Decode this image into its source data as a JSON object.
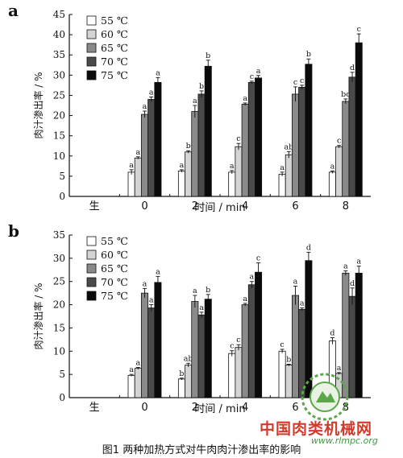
{
  "caption": "图1 两种加热方式对牛肉肉汁渗出率的影响",
  "watermark": {
    "text": "中国肉类机械网",
    "url": "www.rlmpc.org"
  },
  "chart_data": [
    {
      "panel": "a",
      "type": "bar",
      "xlabel": "时间 / min",
      "ylabel": "肉汁渗出率 / %",
      "ylim": [
        0,
        45
      ],
      "yticks": [
        0,
        5,
        10,
        15,
        20,
        25,
        30,
        35,
        40,
        45
      ],
      "categories": [
        "生",
        "0",
        "2",
        "4",
        "6",
        "8"
      ],
      "legend_position": "top-left",
      "series": [
        {
          "name": "55 ℃",
          "color": "#ffffff",
          "values": [
            0,
            6.0,
            6.3,
            6.0,
            5.5,
            6.0
          ],
          "errors": [
            0,
            0.6,
            0.3,
            0.4,
            0.5,
            0.3
          ],
          "labels": [
            "",
            "a",
            "a",
            "a",
            "a",
            "a"
          ]
        },
        {
          "name": "60 ℃",
          "color": "#d4d4d4",
          "values": [
            0,
            9.5,
            11.0,
            12.3,
            10.3,
            12.3
          ],
          "errors": [
            0,
            0.3,
            0.3,
            0.8,
            0.8,
            0.3
          ],
          "labels": [
            "",
            "a",
            "b",
            "c",
            "ab",
            "c"
          ]
        },
        {
          "name": "65 ℃",
          "color": "#8a8a8a",
          "values": [
            0,
            20.3,
            21.0,
            22.8,
            25.3,
            23.5
          ],
          "errors": [
            0,
            0.8,
            1.5,
            0.3,
            1.8,
            0.6
          ],
          "labels": [
            "",
            "a",
            "a",
            "a",
            "c",
            "bc"
          ]
        },
        {
          "name": "70 ℃",
          "color": "#4a4a4a",
          "values": [
            0,
            24.0,
            25.3,
            28.2,
            27.0,
            29.5
          ],
          "errors": [
            0,
            0.6,
            0.8,
            0.3,
            0.5,
            1.2
          ],
          "labels": [
            "",
            "a",
            "b",
            "c",
            "c",
            "d"
          ]
        },
        {
          "name": "75 ℃",
          "color": "#0a0a0a",
          "values": [
            0,
            28.2,
            32.2,
            29.3,
            32.7,
            38.0
          ],
          "errors": [
            0,
            1.2,
            1.5,
            0.6,
            1.3,
            2.2
          ],
          "labels": [
            "",
            "a",
            "b",
            "a",
            "b",
            "c"
          ]
        }
      ]
    },
    {
      "panel": "b",
      "type": "bar",
      "xlabel": "时间 / min",
      "ylabel": "肉汁渗出率 / %",
      "ylim": [
        0,
        35
      ],
      "yticks": [
        0,
        5,
        10,
        15,
        20,
        25,
        30,
        35
      ],
      "categories": [
        "生",
        "0",
        "2",
        "4",
        "6",
        "8"
      ],
      "legend_position": "top-left",
      "series": [
        {
          "name": "55 ℃",
          "color": "#ffffff",
          "values": [
            0,
            4.8,
            4.0,
            9.5,
            10.0,
            12.2
          ],
          "errors": [
            0,
            0.2,
            0.2,
            0.6,
            0.4,
            0.7
          ],
          "labels": [
            "",
            "a",
            "b",
            "c",
            "c",
            "d"
          ]
        },
        {
          "name": "60 ℃",
          "color": "#d4d4d4",
          "values": [
            0,
            6.3,
            7.0,
            10.8,
            7.0,
            5.2
          ],
          "errors": [
            0,
            0.2,
            0.4,
            0.6,
            0.2,
            0.2
          ],
          "labels": [
            "",
            "a",
            "ab",
            "c",
            "b",
            "a"
          ]
        },
        {
          "name": "65 ℃",
          "color": "#8a8a8a",
          "values": [
            0,
            22.5,
            20.7,
            20.0,
            22.0,
            26.8
          ],
          "errors": [
            0,
            1.0,
            1.3,
            0.3,
            2.0,
            0.5
          ],
          "labels": [
            "",
            "a",
            "a",
            "a",
            "a",
            "a"
          ]
        },
        {
          "name": "70 ℃",
          "color": "#4a4a4a",
          "values": [
            0,
            19.3,
            17.8,
            24.3,
            19.0,
            21.8
          ],
          "errors": [
            0,
            0.7,
            0.6,
            0.7,
            0.3,
            1.8
          ],
          "labels": [
            "",
            "a",
            "a",
            "a",
            "a",
            "d"
          ]
        },
        {
          "name": "75 ℃",
          "color": "#0a0a0a",
          "values": [
            0,
            24.8,
            21.2,
            27.0,
            29.5,
            26.8
          ],
          "errors": [
            0,
            1.3,
            1.0,
            2.0,
            1.8,
            1.5
          ],
          "labels": [
            "",
            "a",
            "b",
            "c",
            "d",
            "a"
          ]
        }
      ]
    }
  ]
}
